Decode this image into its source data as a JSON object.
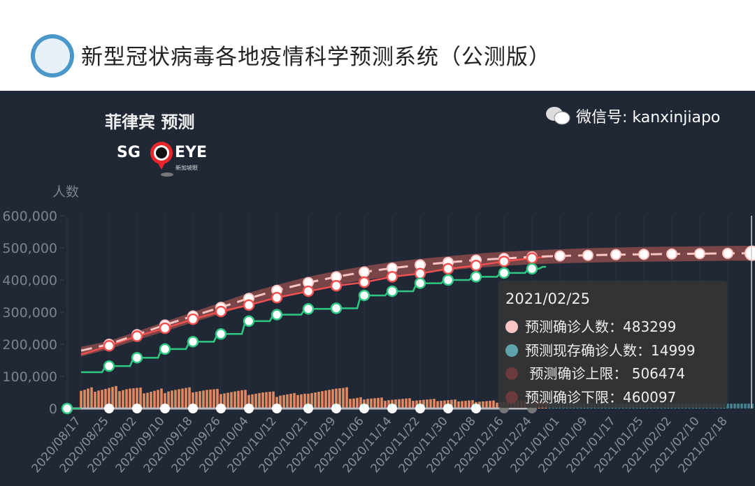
{
  "header": {
    "title": "新型冠状病毒各地疫情科学预测系统（公测版）",
    "logo_icon": "lung-seal-logo"
  },
  "brand": {
    "left": "SG",
    "right": "EYE",
    "sub": "新加坡眼"
  },
  "watermark": "微信号: kanxinjiapo",
  "tooltip": {
    "date": "2021/02/25",
    "rows": [
      {
        "label": "预测确诊人数：",
        "value": "483299",
        "color": "#f9c6c4"
      },
      {
        "label": "预测现存确诊人数：",
        "value": "14999",
        "color": "#5fa3ad"
      },
      {
        "label": " 预测确诊上限： ",
        "value": "506474",
        "color": "#6b3a3c"
      },
      {
        "label": "预测确诊下限：",
        "value": "460097",
        "color": "#6b3a3c"
      }
    ]
  },
  "chart_data": {
    "type": "line",
    "title": "菲律宾 预测",
    "ylabel": "人数",
    "ylim": [
      0,
      600000
    ],
    "yticks": [
      "0",
      "100,000",
      "200,000",
      "300,000",
      "400,000",
      "500,000",
      "600,000"
    ],
    "xlim": [
      "2020/08/13",
      "2021/02/25"
    ],
    "xticks": [
      "2020/08/17",
      "2020/08/25",
      "2020/09/02",
      "2020/09/10",
      "2020/09/18",
      "2020/09/26",
      "2020/10/04",
      "2020/10/12",
      "2020/10/21",
      "2020/10/29",
      "2020/11/06",
      "2020/11/14",
      "2020/11/22",
      "2020/11/30",
      "2020/12/08",
      "2020/12/16",
      "2020/12/24",
      "2021/01/01",
      "2021/01/09",
      "2021/01/17",
      "2021/01/25",
      "2021/02/02",
      "2021/02/10",
      "2021/02/18"
    ],
    "grid": "vertical",
    "colors": {
      "band": "#8b4a4a",
      "predicted": "#f9c6c4",
      "confirmed": "#f0504f",
      "green": "#2ec883",
      "bars": "#e08a62",
      "bars_predicted": "#4e9aa6",
      "zero_line": "#b8b8c0"
    },
    "band": {
      "x": [
        "2020/08/17",
        "2020/08/25",
        "2020/09/02",
        "2020/09/10",
        "2020/09/18",
        "2020/09/26",
        "2020/10/04",
        "2020/10/12",
        "2020/10/21",
        "2020/10/29",
        "2020/11/06",
        "2020/11/14",
        "2020/11/22",
        "2020/11/30",
        "2020/12/08",
        "2020/12/16",
        "2020/12/24",
        "2021/01/01",
        "2021/01/09",
        "2021/01/17",
        "2021/01/25",
        "2021/02/02",
        "2021/02/10",
        "2021/02/18",
        "2021/02/25"
      ],
      "upper": [
        192000,
        210000,
        240000,
        270000,
        300000,
        330000,
        360000,
        385000,
        410000,
        428000,
        443000,
        456000,
        466000,
        474000,
        482000,
        488000,
        492000,
        496000,
        499000,
        501000,
        503000,
        504000,
        505000,
        506000,
        506474
      ],
      "lower": [
        162000,
        185000,
        213000,
        240000,
        268000,
        295000,
        322000,
        345000,
        368000,
        385000,
        400000,
        412000,
        422000,
        430000,
        438000,
        444000,
        449000,
        452000,
        454000,
        456000,
        457000,
        458000,
        459000,
        460000,
        460097
      ]
    },
    "series": [
      {
        "name": "预测确诊人数",
        "style": "dashed",
        "x": [
          "2020/08/17",
          "2020/08/25",
          "2020/09/02",
          "2020/09/10",
          "2020/09/18",
          "2020/09/26",
          "2020/10/04",
          "2020/10/12",
          "2020/10/21",
          "2020/10/29",
          "2020/11/06",
          "2020/11/14",
          "2020/11/22",
          "2020/11/30",
          "2020/12/08",
          "2020/12/16",
          "2020/12/24",
          "2021/01/01",
          "2021/01/09",
          "2021/01/17",
          "2021/01/25",
          "2021/02/02",
          "2021/02/10",
          "2021/02/18",
          "2021/02/25"
        ],
        "y": [
          180000,
          200000,
          230000,
          260000,
          288000,
          315000,
          343000,
          368000,
          392000,
          410000,
          425000,
          437000,
          447000,
          455000,
          462000,
          467000,
          472000,
          475000,
          477000,
          479000,
          480000,
          481000,
          482000,
          483000,
          483299
        ]
      },
      {
        "name": "confirmed",
        "x": [
          "2020/08/17",
          "2020/08/25",
          "2020/09/02",
          "2020/09/10",
          "2020/09/18",
          "2020/09/26",
          "2020/10/04",
          "2020/10/12",
          "2020/10/21",
          "2020/10/29",
          "2020/11/06",
          "2020/11/14",
          "2020/11/22",
          "2020/11/30",
          "2020/12/08",
          "2020/12/16",
          "2020/12/24",
          "2020/12/28"
        ],
        "y": [
          168000,
          195000,
          225000,
          250000,
          278000,
          302000,
          322000,
          345000,
          365000,
          382000,
          393000,
          410000,
          420000,
          435000,
          445000,
          458000,
          468000,
          472000
        ]
      },
      {
        "name": "green",
        "style": "step",
        "x": [
          "2020/08/17",
          "2020/08/25",
          "2020/09/02",
          "2020/09/10",
          "2020/09/18",
          "2020/09/26",
          "2020/10/04",
          "2020/10/12",
          "2020/10/21",
          "2020/10/29",
          "2020/11/06",
          "2020/11/14",
          "2020/11/22",
          "2020/11/30",
          "2020/12/08",
          "2020/12/16",
          "2020/12/24",
          "2020/12/28"
        ],
        "y": [
          113000,
          132000,
          158000,
          185000,
          208000,
          232000,
          272000,
          292000,
          310000,
          312000,
          352000,
          365000,
          390000,
          400000,
          410000,
          422000,
          435000,
          441000
        ]
      },
      {
        "name": "zero",
        "x": [
          "2020/08/13",
          "2020/08/25",
          "2020/09/02",
          "2020/09/10",
          "2020/09/18",
          "2020/09/26",
          "2020/10/04",
          "2020/10/12",
          "2020/10/21",
          "2020/10/29",
          "2020/11/06",
          "2020/11/14",
          "2020/11/22",
          "2020/11/30",
          "2020/12/08",
          "2020/12/16",
          "2020/12/24"
        ],
        "y": [
          0,
          0,
          0,
          0,
          0,
          0,
          0,
          0,
          0,
          0,
          0,
          0,
          0,
          0,
          0,
          0,
          0
        ]
      }
    ],
    "bars": {
      "start": "2020/08/17",
      "end": "2020/12/28",
      "values": [
        55000,
        58000,
        62000,
        66000,
        52000,
        56000,
        58000,
        61000,
        64000,
        67000,
        70000,
        54000,
        57000,
        60000,
        62000,
        63000,
        64000,
        65000,
        47000,
        49000,
        52000,
        55000,
        58000,
        62000,
        48000,
        53000,
        56000,
        58000,
        60000,
        62000,
        64000,
        66000,
        50000,
        52000,
        54000,
        56000,
        58000,
        59000,
        60000,
        61000,
        45000,
        47000,
        49000,
        51000,
        53000,
        55000,
        57000,
        58000,
        42000,
        44000,
        46000,
        48000,
        50000,
        51000,
        52000,
        53000,
        36000,
        40000,
        42000,
        44000,
        46000,
        48000,
        42000,
        44000,
        46000,
        46000,
        48000,
        50000,
        52000,
        54000,
        56000,
        58000,
        60000,
        62000,
        63000,
        64000,
        66000,
        30000,
        31000,
        33000,
        35000,
        28000,
        30000,
        31000,
        32000,
        33000,
        34000,
        24000,
        26000,
        27000,
        28000,
        29000,
        30000,
        31000,
        32000,
        24000,
        25000,
        26000,
        27000,
        28000,
        29000,
        30000,
        23000,
        24000,
        25000,
        26000,
        27000,
        28000,
        22000,
        23000,
        24000,
        25000,
        26000,
        20000,
        21000,
        22000,
        23000,
        24000,
        25000,
        18000,
        19000,
        20000,
        21000,
        22000,
        23000,
        24000,
        25000,
        26000,
        18000,
        20000,
        22000,
        24000,
        25000,
        26000
      ]
    },
    "bars_predicted": {
      "start": "2020/12/29",
      "end": "2021/02/25",
      "values": [
        17800,
        17700,
        17600,
        17500,
        17400,
        17350,
        17300,
        17200,
        17100,
        17000,
        16950,
        16900,
        16800,
        16750,
        16700,
        16600,
        16550,
        16500,
        16400,
        16350,
        16300,
        16250,
        16200,
        16150,
        16100,
        16050,
        16000,
        15950,
        15900,
        15850,
        15800,
        15750,
        15700,
        15650,
        15600,
        15560,
        15520,
        15480,
        15440,
        15400,
        15370,
        15340,
        15310,
        15280,
        15250,
        15220,
        15190,
        15160,
        15130,
        15110,
        15090,
        15070,
        15050,
        15040,
        15030,
        15020,
        15010,
        15005,
        14999
      ]
    }
  }
}
